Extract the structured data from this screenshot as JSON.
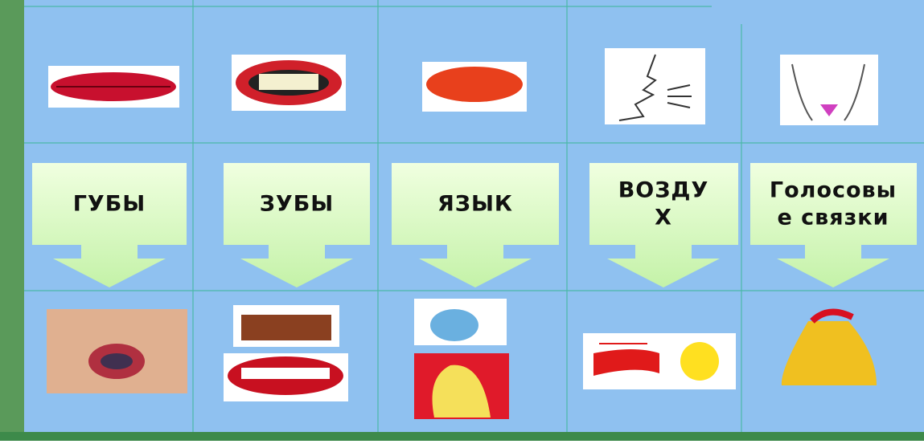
{
  "labels": [
    [
      "ГУБЫ"
    ],
    [
      "ЗУБЫ"
    ],
    [
      "ЯЗЫК"
    ],
    [
      "ВОЗДУ",
      "Х"
    ],
    [
      "Голосовы",
      "е связки"
    ]
  ]
}
